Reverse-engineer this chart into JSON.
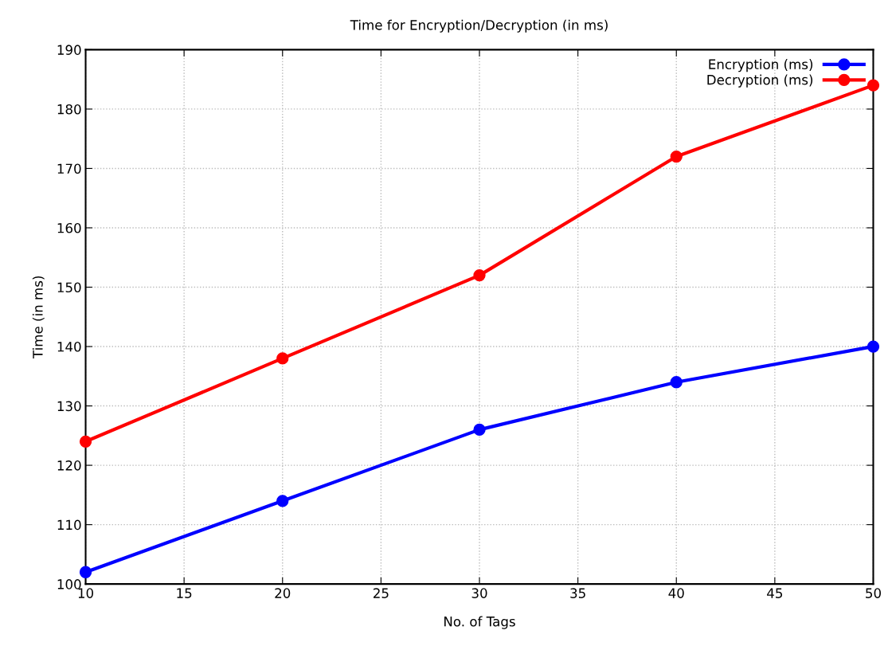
{
  "chart_data": {
    "type": "line",
    "title": "Time for Encryption/Decryption (in ms)",
    "xlabel": "No. of Tags",
    "ylabel": "Time (in ms)",
    "x": [
      10,
      20,
      30,
      40,
      50
    ],
    "series": [
      {
        "name": "Encryption (ms)",
        "color": "#0000ff",
        "values": [
          102,
          114,
          126,
          134,
          140
        ]
      },
      {
        "name": "Decryption (ms)",
        "color": "#ff0000",
        "values": [
          124,
          138,
          152,
          172,
          184
        ]
      }
    ],
    "xlim": [
      10,
      50
    ],
    "xticks": [
      10,
      15,
      20,
      25,
      30,
      35,
      40,
      45,
      50
    ],
    "ylim": [
      100,
      190
    ],
    "yticks": [
      100,
      110,
      120,
      130,
      140,
      150,
      160,
      170,
      180,
      190
    ],
    "grid": true,
    "legend": "top right",
    "marker": "circle",
    "line_style": "solid"
  }
}
